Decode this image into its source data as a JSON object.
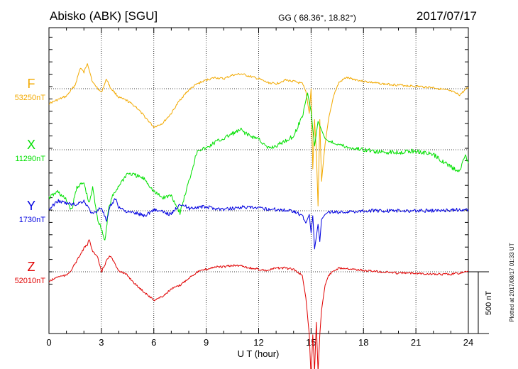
{
  "header": {
    "station": "Abisko (ABK)  [SGU]",
    "coords": "GG ( 68.36°,  18.82°)",
    "date": "2017/07/17"
  },
  "side_note": "Plotted at 2017/08/17 01:33 UT",
  "scale_label": "500 nT",
  "chart_data": {
    "type": "line",
    "xlabel": "U T (hour)",
    "xlim": [
      0,
      24
    ],
    "xticks": [
      "0",
      "3",
      "6",
      "9",
      "12",
      "15",
      "18",
      "21",
      "24"
    ],
    "scale_nT": 500,
    "series": [
      {
        "name": "F",
        "baseline_label": "53250nT",
        "color": "#f2a900",
        "baseline": 53250,
        "x": [
          0,
          0.5,
          1,
          1.5,
          1.8,
          2,
          2.2,
          2.5,
          3,
          3.3,
          3.5,
          4,
          4.5,
          5,
          5.5,
          6,
          6.5,
          7,
          7.5,
          8,
          8.5,
          9,
          9.5,
          10,
          10.5,
          11,
          11.5,
          12,
          12.5,
          13,
          13.5,
          14,
          14.5,
          14.7,
          14.9,
          15,
          15.1,
          15.2,
          15.3,
          15.4,
          15.5,
          15.6,
          15.8,
          16,
          16.3,
          16.6,
          17,
          18,
          19,
          20,
          21,
          22,
          23,
          23.5,
          24
        ],
        "y": [
          53130,
          53160,
          53190,
          53280,
          53420,
          53380,
          53460,
          53300,
          53220,
          53330,
          53260,
          53180,
          53150,
          53100,
          53020,
          52940,
          52970,
          53050,
          53160,
          53240,
          53290,
          53320,
          53340,
          53330,
          53360,
          53370,
          53350,
          53330,
          53300,
          53290,
          53320,
          53310,
          53290,
          53230,
          53050,
          53250,
          52600,
          53000,
          52750,
          52300,
          53000,
          52500,
          52800,
          53000,
          53200,
          53300,
          53340,
          53310,
          53290,
          53280,
          53270,
          53260,
          53230,
          53200,
          53260
        ]
      },
      {
        "name": "X",
        "baseline_label": "11290nT",
        "color": "#00e000",
        "baseline": 11290,
        "x": [
          0,
          0.5,
          1,
          1.3,
          1.6,
          2,
          2.3,
          2.5,
          2.8,
          3,
          3.2,
          3.4,
          3.6,
          4,
          4.5,
          5,
          5.5,
          6,
          6.5,
          7,
          7.5,
          8,
          8.5,
          9,
          9.5,
          10,
          10.5,
          11,
          11.5,
          12,
          12.5,
          13,
          13.5,
          14,
          14.5,
          14.8,
          15,
          15.2,
          15.4,
          15.6,
          15.8,
          16,
          16.5,
          17,
          18,
          19,
          20,
          21,
          22,
          23,
          23.5,
          23.8,
          24
        ],
        "y": [
          10900,
          10950,
          10880,
          10800,
          10990,
          11020,
          10850,
          10980,
          10720,
          10650,
          10550,
          10800,
          10900,
          11000,
          11100,
          11080,
          11050,
          10950,
          10900,
          10920,
          10780,
          11030,
          11290,
          11300,
          11350,
          11380,
          11420,
          11450,
          11400,
          11380,
          11300,
          11320,
          11360,
          11400,
          11560,
          11750,
          11600,
          11320,
          11520,
          11450,
          11380,
          11360,
          11340,
          11310,
          11290,
          11270,
          11270,
          11280,
          11250,
          11150,
          11110,
          11250,
          11180
        ]
      },
      {
        "name": "Y",
        "baseline_label": "1730nT",
        "color": "#0000e0",
        "baseline": 1730,
        "x": [
          0,
          0.5,
          1,
          1.5,
          2,
          2.5,
          3,
          3.3,
          3.5,
          3.8,
          4,
          4.5,
          5,
          5.5,
          6,
          6.5,
          7,
          7.5,
          8,
          8.5,
          9,
          10,
          11,
          12,
          13,
          14,
          14.5,
          14.7,
          14.9,
          15.0,
          15.1,
          15.2,
          15.4,
          15.5,
          15.6,
          15.8,
          16,
          17,
          18,
          19,
          20,
          21,
          22,
          23,
          24
        ],
        "y": [
          1740,
          1810,
          1790,
          1780,
          1810,
          1700,
          1760,
          1640,
          1760,
          1830,
          1760,
          1720,
          1710,
          1690,
          1740,
          1720,
          1700,
          1790,
          1750,
          1760,
          1760,
          1740,
          1760,
          1750,
          1740,
          1730,
          1690,
          1630,
          1700,
          1550,
          1690,
          1420,
          1620,
          1480,
          1660,
          1700,
          1720,
          1720,
          1730,
          1730,
          1730,
          1730,
          1730,
          1735,
          1740
        ]
      },
      {
        "name": "Z",
        "baseline_label": "52010nT",
        "color": "#e00000",
        "baseline": 52010,
        "x": [
          0,
          0.5,
          1,
          1.3,
          1.6,
          2,
          2.2,
          2.3,
          2.5,
          2.8,
          3,
          3.3,
          3.5,
          4,
          4.5,
          5,
          5.5,
          6,
          6.5,
          7,
          7.5,
          8,
          8.5,
          9,
          9.5,
          10,
          10.5,
          11,
          11.5,
          12,
          12.5,
          13,
          13.5,
          14,
          14.5,
          14.7,
          14.9,
          15,
          15.1,
          15.2,
          15.3,
          15.4,
          15.5,
          15.6,
          15.8,
          16,
          16.3,
          16.6,
          17,
          18,
          19,
          20,
          21,
          22,
          23,
          23.5,
          24
        ],
        "y": [
          51930,
          51970,
          51980,
          52030,
          52100,
          52200,
          52230,
          52270,
          52180,
          52120,
          52010,
          52100,
          52140,
          52020,
          51980,
          51900,
          51840,
          51780,
          51810,
          51870,
          51900,
          51960,
          52010,
          52030,
          52050,
          52050,
          52060,
          52060,
          52040,
          52030,
          52020,
          52040,
          52040,
          52030,
          51980,
          51800,
          51500,
          51150,
          51500,
          51200,
          51600,
          51200,
          51500,
          51700,
          51900,
          51980,
          52020,
          52040,
          52040,
          52020,
          52010,
          52000,
          52000,
          51990,
          51990,
          52000,
          52010
        ]
      }
    ]
  }
}
